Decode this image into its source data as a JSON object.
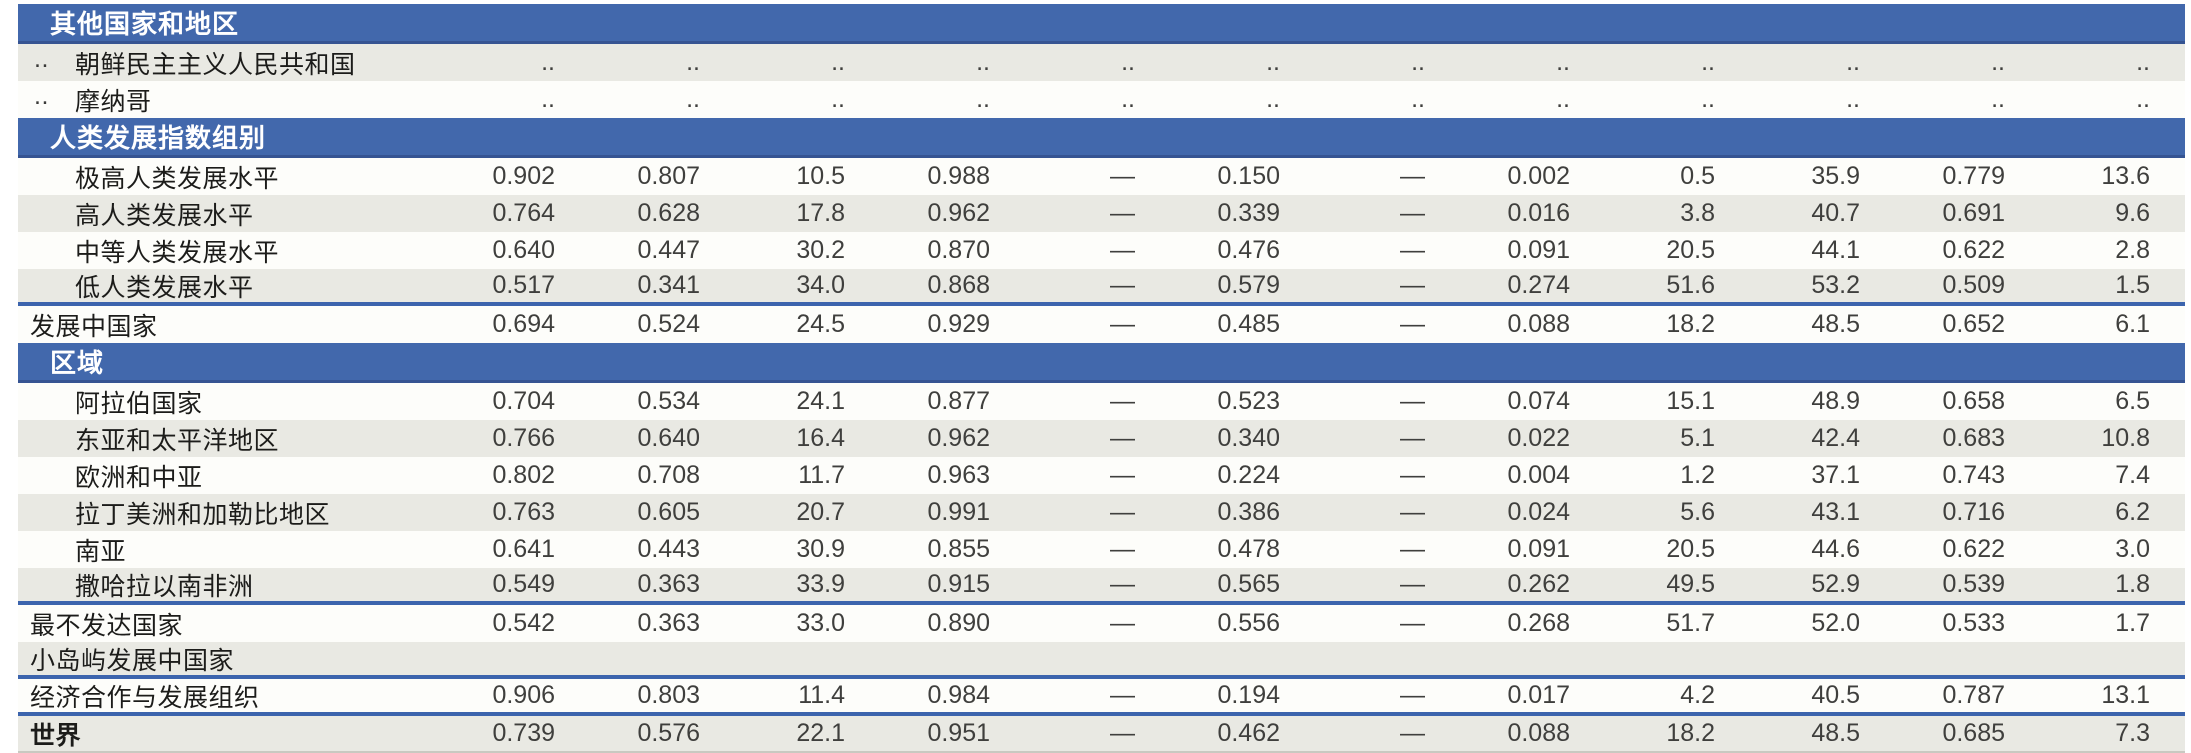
{
  "document": {
    "type": "statistical-table",
    "language": "zh-CN",
    "columns_count": 12,
    "no_data_symbol": "..",
    "not_applicable_symbol": "—"
  },
  "colors": {
    "header_blue": "#4268ac",
    "header_blue_edge": "#365492",
    "separator_blue": "#3c64ad",
    "row_shade": "#e9e9e3",
    "row_plain": "#fdfdfa",
    "bottom_rule_gray": "#c9c9c1",
    "label_text": "#1c1c1a",
    "value_text": "#3f3f3d"
  },
  "rows": [
    {
      "type": "header",
      "label": "其他国家和地区"
    },
    {
      "type": "data",
      "rank": "..",
      "label": "朝鲜民主主义人民共和国",
      "indent": true,
      "shaded": true,
      "border": false,
      "bold": false,
      "values": [
        "..",
        "..",
        "..",
        "..",
        "..",
        "..",
        "..",
        "..",
        "..",
        "..",
        "..",
        ".."
      ]
    },
    {
      "type": "data",
      "rank": "..",
      "label": "摩纳哥",
      "indent": true,
      "shaded": false,
      "border": false,
      "bold": false,
      "values": [
        "..",
        "..",
        "..",
        "..",
        "..",
        "..",
        "..",
        "..",
        "..",
        "..",
        "..",
        ".."
      ]
    },
    {
      "type": "header",
      "label": "人类发展指数组别"
    },
    {
      "type": "data",
      "rank": "",
      "label": "极高人类发展水平",
      "indent": true,
      "shaded": false,
      "border": false,
      "bold": false,
      "values": [
        "0.902",
        "0.807",
        "10.5",
        "0.988",
        "—",
        "0.150",
        "—",
        "0.002",
        "0.5",
        "35.9",
        "0.779",
        "13.6"
      ]
    },
    {
      "type": "data",
      "rank": "",
      "label": "高人类发展水平",
      "indent": true,
      "shaded": true,
      "border": false,
      "bold": false,
      "values": [
        "0.764",
        "0.628",
        "17.8",
        "0.962",
        "—",
        "0.339",
        "—",
        "0.016",
        "3.8",
        "40.7",
        "0.691",
        "9.6"
      ]
    },
    {
      "type": "data",
      "rank": "",
      "label": "中等人类发展水平",
      "indent": true,
      "shaded": false,
      "border": false,
      "bold": false,
      "values": [
        "0.640",
        "0.447",
        "30.2",
        "0.870",
        "—",
        "0.476",
        "—",
        "0.091",
        "20.5",
        "44.1",
        "0.622",
        "2.8"
      ]
    },
    {
      "type": "data",
      "rank": "",
      "label": "低人类发展水平",
      "indent": true,
      "shaded": true,
      "border": true,
      "bold": false,
      "values": [
        "0.517",
        "0.341",
        "34.0",
        "0.868",
        "—",
        "0.579",
        "—",
        "0.274",
        "51.6",
        "53.2",
        "0.509",
        "1.5"
      ]
    },
    {
      "type": "data",
      "rank": "",
      "label": "发展中国家",
      "indent": false,
      "shaded": false,
      "border": false,
      "bold": false,
      "values": [
        "0.694",
        "0.524",
        "24.5",
        "0.929",
        "—",
        "0.485",
        "—",
        "0.088",
        "18.2",
        "48.5",
        "0.652",
        "6.1"
      ]
    },
    {
      "type": "header",
      "label": "区域"
    },
    {
      "type": "data",
      "rank": "",
      "label": "阿拉伯国家",
      "indent": true,
      "shaded": false,
      "border": false,
      "bold": false,
      "values": [
        "0.704",
        "0.534",
        "24.1",
        "0.877",
        "—",
        "0.523",
        "—",
        "0.074",
        "15.1",
        "48.9",
        "0.658",
        "6.5"
      ]
    },
    {
      "type": "data",
      "rank": "",
      "label": "东亚和太平洋地区",
      "indent": true,
      "shaded": true,
      "border": false,
      "bold": false,
      "values": [
        "0.766",
        "0.640",
        "16.4",
        "0.962",
        "—",
        "0.340",
        "—",
        "0.022",
        "5.1",
        "42.4",
        "0.683",
        "10.8"
      ]
    },
    {
      "type": "data",
      "rank": "",
      "label": "欧洲和中亚",
      "indent": true,
      "shaded": false,
      "border": false,
      "bold": false,
      "values": [
        "0.802",
        "0.708",
        "11.7",
        "0.963",
        "—",
        "0.224",
        "—",
        "0.004",
        "1.2",
        "37.1",
        "0.743",
        "7.4"
      ]
    },
    {
      "type": "data",
      "rank": "",
      "label": "拉丁美洲和加勒比地区",
      "indent": true,
      "shaded": true,
      "border": false,
      "bold": false,
      "values": [
        "0.763",
        "0.605",
        "20.7",
        "0.991",
        "—",
        "0.386",
        "—",
        "0.024",
        "5.6",
        "43.1",
        "0.716",
        "6.2"
      ]
    },
    {
      "type": "data",
      "rank": "",
      "label": "南亚",
      "indent": true,
      "shaded": false,
      "border": false,
      "bold": false,
      "values": [
        "0.641",
        "0.443",
        "30.9",
        "0.855",
        "—",
        "0.478",
        "—",
        "0.091",
        "20.5",
        "44.6",
        "0.622",
        "3.0"
      ]
    },
    {
      "type": "data",
      "rank": "",
      "label": "撒哈拉以南非洲",
      "indent": true,
      "shaded": true,
      "border": true,
      "bold": false,
      "values": [
        "0.549",
        "0.363",
        "33.9",
        "0.915",
        "—",
        "0.565",
        "—",
        "0.262",
        "49.5",
        "52.9",
        "0.539",
        "1.8"
      ]
    },
    {
      "type": "data",
      "rank": "",
      "label": "最不发达国家",
      "indent": false,
      "shaded": false,
      "border": false,
      "bold": false,
      "values": [
        "0.542",
        "0.363",
        "33.0",
        "0.890",
        "—",
        "0.556",
        "—",
        "0.268",
        "51.7",
        "52.0",
        "0.533",
        "1.7"
      ]
    },
    {
      "type": "data",
      "rank": "",
      "label": "小岛屿发展中国家",
      "indent": false,
      "shaded": true,
      "border": true,
      "bold": false,
      "values": [
        "",
        "",
        "",
        "",
        "",
        "",
        "",
        "",
        "",
        "",
        "",
        ""
      ]
    },
    {
      "type": "data",
      "rank": "",
      "label": "经济合作与发展组织",
      "indent": false,
      "shaded": false,
      "border": true,
      "bold": false,
      "values": [
        "0.906",
        "0.803",
        "11.4",
        "0.984",
        "—",
        "0.194",
        "—",
        "0.017",
        "4.2",
        "40.5",
        "0.787",
        "13.1"
      ]
    },
    {
      "type": "data",
      "rank": "",
      "label": "世界",
      "indent": false,
      "shaded": true,
      "border": false,
      "bold": true,
      "endline": true,
      "values": [
        "0.739",
        "0.576",
        "22.1",
        "0.951",
        "—",
        "0.462",
        "—",
        "0.088",
        "18.2",
        "48.5",
        "0.685",
        "7.3"
      ]
    }
  ]
}
